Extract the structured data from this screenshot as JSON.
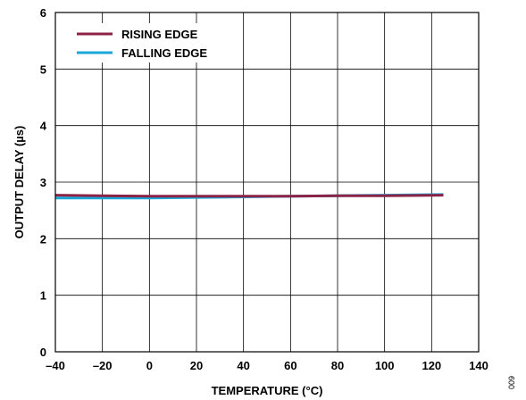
{
  "chart_data": {
    "type": "line",
    "title": "",
    "xlabel": "TEMPERATURE (°C)",
    "ylabel": "OUTPUT DELAY (µs)",
    "xlim": [
      -40,
      140
    ],
    "ylim": [
      0,
      6
    ],
    "x_ticks": [
      -40,
      -20,
      0,
      20,
      40,
      60,
      80,
      100,
      120,
      140
    ],
    "x_tick_labels": [
      "–40",
      "–20",
      "0",
      "20",
      "40",
      "60",
      "80",
      "100",
      "120",
      "140"
    ],
    "y_ticks": [
      0,
      1,
      2,
      3,
      4,
      5,
      6
    ],
    "y_tick_labels": [
      "0",
      "1",
      "2",
      "3",
      "4",
      "5",
      "6"
    ],
    "grid": true,
    "legend_position": "top-left",
    "series": [
      {
        "name": "RISING EDGE",
        "color": "#8B2346",
        "x": [
          -40,
          -20,
          0,
          20,
          40,
          60,
          80,
          100,
          125
        ],
        "y": [
          2.77,
          2.76,
          2.75,
          2.75,
          2.75,
          2.75,
          2.76,
          2.76,
          2.77
        ]
      },
      {
        "name": "FALLING EDGE",
        "color": "#1AA8D8",
        "x": [
          -40,
          -20,
          0,
          20,
          40,
          60,
          80,
          100,
          125
        ],
        "y": [
          2.72,
          2.72,
          2.72,
          2.73,
          2.74,
          2.75,
          2.76,
          2.77,
          2.78
        ]
      }
    ]
  },
  "figure_code": "009"
}
